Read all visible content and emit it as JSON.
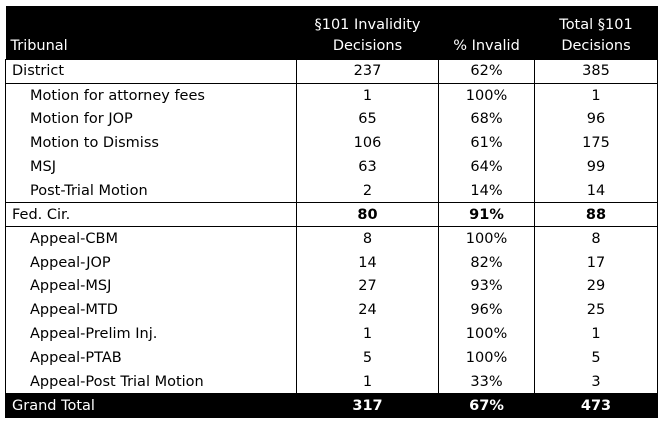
{
  "header": {
    "tribunal": "Tribunal",
    "invalidity_line1": "§101 Invalidity",
    "invalidity_line2": "Decisions",
    "pct_invalid": "% Invalid",
    "total_line1": "Total §101",
    "total_line2": "Decisions"
  },
  "rows": [
    {
      "label": "District",
      "decisions": "237",
      "pct": "62%",
      "total": "385"
    },
    {
      "label": "Motion for attorney fees",
      "decisions": "1",
      "pct": "100%",
      "total": "1"
    },
    {
      "label": "Motion for JOP",
      "decisions": "65",
      "pct": "68%",
      "total": "96"
    },
    {
      "label": "Motion to Dismiss",
      "decisions": "106",
      "pct": "61%",
      "total": "175"
    },
    {
      "label": "MSJ",
      "decisions": "63",
      "pct": "64%",
      "total": "99"
    },
    {
      "label": "Post-Trial Motion",
      "decisions": "2",
      "pct": "14%",
      "total": "14"
    },
    {
      "label": "Fed. Cir.",
      "decisions": "80",
      "pct": "91%",
      "total": "88"
    },
    {
      "label": "Appeal-CBM",
      "decisions": "8",
      "pct": "100%",
      "total": "8"
    },
    {
      "label": "Appeal-JOP",
      "decisions": "14",
      "pct": "82%",
      "total": "17"
    },
    {
      "label": "Appeal-MSJ",
      "decisions": "27",
      "pct": "93%",
      "total": "29"
    },
    {
      "label": "Appeal-MTD",
      "decisions": "24",
      "pct": "96%",
      "total": "25"
    },
    {
      "label": "Appeal-Prelim Inj.",
      "decisions": "1",
      "pct": "100%",
      "total": "1"
    },
    {
      "label": "Appeal-PTAB",
      "decisions": "5",
      "pct": "100%",
      "total": "5"
    },
    {
      "label": "Appeal-Post Trial Motion",
      "decisions": "1",
      "pct": "33%",
      "total": "3"
    }
  ],
  "grand_total": {
    "label": "Grand Total",
    "decisions": "317",
    "pct": "67%",
    "total": "473"
  }
}
